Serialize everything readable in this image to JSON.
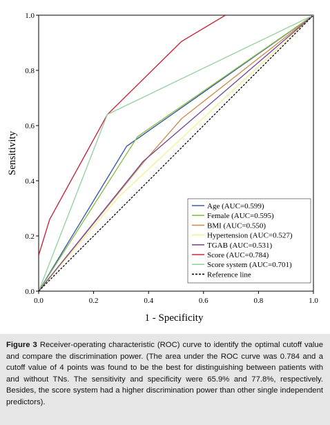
{
  "caption": {
    "label": "Figure 3",
    "text": " Receiver-operating characteristic (ROC) curve to identify the optimal cutoff value and compare the discrimination power. (The area under the ROC curve was 0.784 and a cutoff value of 4 points was found to be the best for distinguishing between patients with and without TNs. The sensitivity and specificity were 65.9% and 77.8%, respectively. Besides, the score system had a higher discrimination power than other single independent predictors)."
  },
  "chart_data": {
    "type": "line",
    "title": "",
    "xlabel": "1 - Specificity",
    "ylabel": "Sensitivity",
    "xlim": [
      0,
      1
    ],
    "ylim": [
      0,
      1
    ],
    "xticks": [
      "0.0",
      "0.2",
      "0.4",
      "0.6",
      "0.8",
      "1.0"
    ],
    "yticks": [
      "0.0",
      "0.2",
      "0.4",
      "0.6",
      "0.8",
      "1.0"
    ],
    "grid": false,
    "legend_position": "bottom-right",
    "series": [
      {
        "name": "Age (AUC=0.599)",
        "color": "#3b5ba9",
        "dash": false,
        "points": [
          [
            0,
            0
          ],
          [
            0.32,
            0.525
          ],
          [
            0.37,
            0.56
          ],
          [
            1,
            1
          ]
        ]
      },
      {
        "name": "Female (AUC=0.595)",
        "color": "#8cbf4a",
        "dash": false,
        "points": [
          [
            0,
            0
          ],
          [
            0.36,
            0.56
          ],
          [
            1,
            1
          ]
        ]
      },
      {
        "name": "BMI (AUC=0.550)",
        "color": "#d08c52",
        "dash": false,
        "points": [
          [
            0,
            0
          ],
          [
            0.38,
            0.465
          ],
          [
            0.52,
            0.625
          ],
          [
            1,
            1
          ]
        ]
      },
      {
        "name": "Hypertension (AUC=0.527)",
        "color": "#f1f196",
        "dash": false,
        "points": [
          [
            0,
            0
          ],
          [
            0.29,
            0.34
          ],
          [
            1,
            1
          ]
        ]
      },
      {
        "name": "TGAB (AUC=0.531)",
        "color": "#7a4d9c",
        "dash": false,
        "points": [
          [
            0,
            0
          ],
          [
            0.38,
            0.47
          ],
          [
            1,
            1
          ]
        ]
      },
      {
        "name": "Score (AUC=0.784)",
        "color": "#c8283c",
        "dash": false,
        "points": [
          [
            0,
            0.13
          ],
          [
            0.04,
            0.26
          ],
          [
            0.25,
            0.64
          ],
          [
            0.52,
            0.905
          ],
          [
            0.68,
            1
          ]
        ]
      },
      {
        "name": "Score system (AUC=0.701)",
        "color": "#98d2a0",
        "dash": false,
        "points": [
          [
            0,
            0
          ],
          [
            0.25,
            0.64
          ],
          [
            1,
            1
          ]
        ]
      },
      {
        "name": "Reference line",
        "color": "#000000",
        "dash": true,
        "points": [
          [
            0,
            0
          ],
          [
            1,
            1
          ]
        ]
      }
    ]
  }
}
